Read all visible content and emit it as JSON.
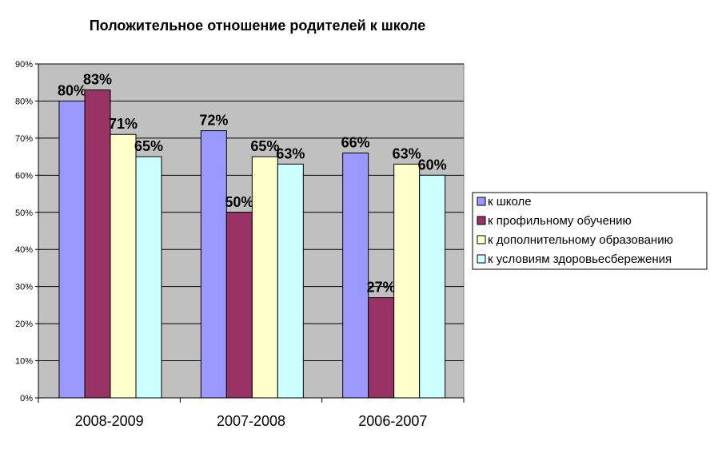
{
  "chart_data": {
    "type": "bar",
    "title": "Положительное отношение родителей к школе",
    "categories": [
      "2008-2009",
      "2007-2008",
      "2006-2007"
    ],
    "series": [
      {
        "name": "к школе",
        "values": [
          80,
          72,
          66
        ],
        "color": "#9999ff"
      },
      {
        "name": "к профильному обучению",
        "values": [
          83,
          50,
          27
        ],
        "color": "#993366"
      },
      {
        "name": "к дополнительному образованию",
        "values": [
          71,
          65,
          63
        ],
        "color": "#ffffcc"
      },
      {
        "name": "к условиям здоровьесбережения",
        "values": [
          65,
          63,
          60
        ],
        "color": "#ccffff"
      }
    ],
    "value_suffix": "%",
    "ylim": [
      0,
      90
    ],
    "yticks": [
      0,
      10,
      20,
      30,
      40,
      50,
      60,
      70,
      80,
      90
    ],
    "grid": true,
    "legend": "right",
    "plot_background": "#c0c0c0"
  }
}
